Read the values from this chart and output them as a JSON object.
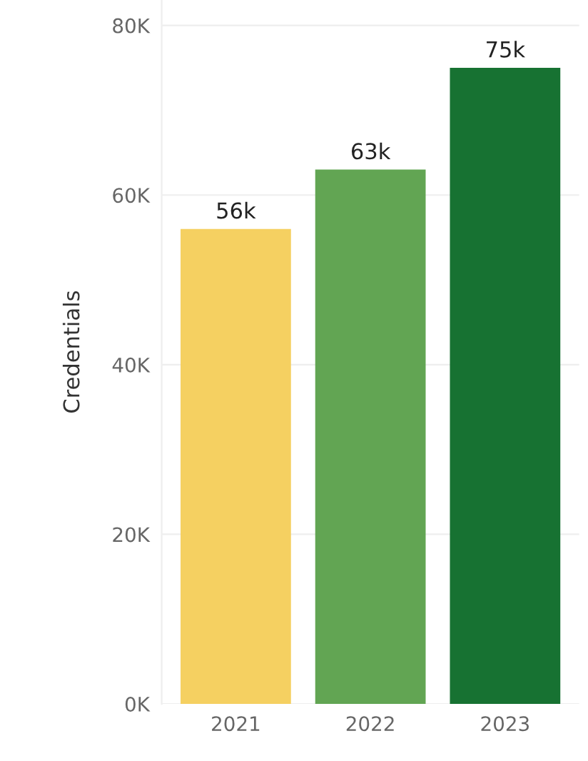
{
  "chart_data": {
    "type": "bar",
    "ylabel": "Credentials",
    "categories": [
      "2021",
      "2022",
      "2023"
    ],
    "values": [
      56000,
      63000,
      75000
    ],
    "colors": [
      "#f5d061",
      "#62a553",
      "#177232"
    ],
    "value_labels": [
      "56k",
      "63k",
      "75k"
    ],
    "ylim": [
      0,
      83000
    ],
    "yticks": [
      {
        "value": 0,
        "label": "0K"
      },
      {
        "value": 20000,
        "label": "20K"
      },
      {
        "value": 40000,
        "label": "40K"
      },
      {
        "value": 60000,
        "label": "60K"
      },
      {
        "value": 80000,
        "label": "80K"
      }
    ],
    "grid": "y"
  }
}
